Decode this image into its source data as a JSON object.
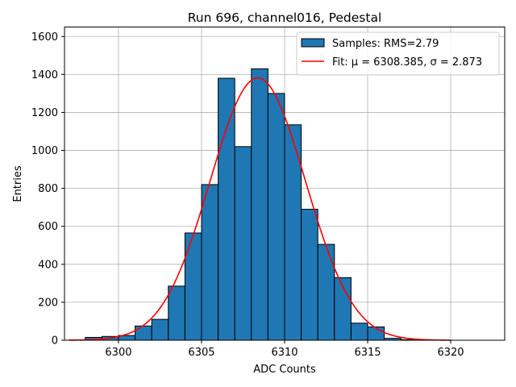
{
  "chart_data": {
    "type": "bar",
    "subtype": "histogram-with-fit",
    "title": "Run 696, channel016, Pedestal",
    "xlabel": "ADC Counts",
    "ylabel": "Entries",
    "xlim": [
      6296.75,
      6323.25
    ],
    "ylim": [
      0,
      1650
    ],
    "x_ticks": [
      6300,
      6305,
      6310,
      6315,
      6320
    ],
    "y_ticks": [
      0,
      200,
      400,
      600,
      800,
      1000,
      1200,
      1400,
      1600
    ],
    "grid": true,
    "legend_position": "top-right",
    "bin_width": 1,
    "bins": [
      {
        "left": 6298,
        "value": 15
      },
      {
        "left": 6299,
        "value": 20
      },
      {
        "left": 6300,
        "value": 25
      },
      {
        "left": 6301,
        "value": 75
      },
      {
        "left": 6302,
        "value": 110
      },
      {
        "left": 6303,
        "value": 285
      },
      {
        "left": 6304,
        "value": 565
      },
      {
        "left": 6305,
        "value": 820
      },
      {
        "left": 6306,
        "value": 1380
      },
      {
        "left": 6307,
        "value": 1020
      },
      {
        "left": 6308,
        "value": 1430
      },
      {
        "left": 6309,
        "value": 1300
      },
      {
        "left": 6310,
        "value": 1135
      },
      {
        "left": 6311,
        "value": 690
      },
      {
        "left": 6312,
        "value": 505
      },
      {
        "left": 6313,
        "value": 330
      },
      {
        "left": 6314,
        "value": 90
      },
      {
        "left": 6315,
        "value": 70
      },
      {
        "left": 6316,
        "value": 10
      },
      {
        "left": 6317,
        "value": 3
      }
    ],
    "series": [
      {
        "name": "Samples: RMS=2.79",
        "kind": "histogram",
        "color": "#1f77b4",
        "edge_color": "#000000"
      },
      {
        "name": "Fit: μ = 6308.385, σ = 2.873",
        "kind": "gaussian-fit",
        "color": "#ff0000",
        "mu": 6308.385,
        "sigma": 2.873,
        "amplitude": 1382,
        "x_range": [
          6297,
          6320
        ]
      }
    ]
  }
}
